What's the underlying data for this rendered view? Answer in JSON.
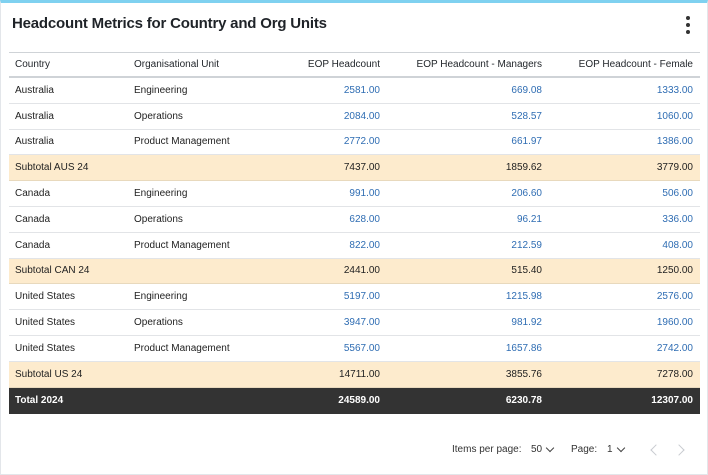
{
  "widget": {
    "title": "Headcount Metrics for Country and Org Units",
    "menu_icon": "kebab-menu-icon"
  },
  "table": {
    "columns": [
      "Country",
      "Organisational Unit",
      "EOP Headcount",
      "EOP Headcount - Managers",
      "EOP Headcount - Female"
    ],
    "rows": [
      {
        "type": "data",
        "cells": [
          "Australia",
          "Engineering",
          "2581.00",
          "669.08",
          "1333.00"
        ]
      },
      {
        "type": "data",
        "cells": [
          "Australia",
          "Operations",
          "2084.00",
          "528.57",
          "1060.00"
        ]
      },
      {
        "type": "data",
        "cells": [
          "Australia",
          "Product Management",
          "2772.00",
          "661.97",
          "1386.00"
        ]
      },
      {
        "type": "subtotal",
        "cells": [
          "Subtotal AUS 24",
          "",
          "7437.00",
          "1859.62",
          "3779.00"
        ]
      },
      {
        "type": "data",
        "cells": [
          "Canada",
          "Engineering",
          "991.00",
          "206.60",
          "506.00"
        ]
      },
      {
        "type": "data",
        "cells": [
          "Canada",
          "Operations",
          "628.00",
          "96.21",
          "336.00"
        ]
      },
      {
        "type": "data",
        "cells": [
          "Canada",
          "Product Management",
          "822.00",
          "212.59",
          "408.00"
        ]
      },
      {
        "type": "subtotal",
        "cells": [
          "Subtotal CAN 24",
          "",
          "2441.00",
          "515.40",
          "1250.00"
        ]
      },
      {
        "type": "data",
        "cells": [
          "United States",
          "Engineering",
          "5197.00",
          "1215.98",
          "2576.00"
        ]
      },
      {
        "type": "data",
        "cells": [
          "United States",
          "Operations",
          "3947.00",
          "981.92",
          "1960.00"
        ]
      },
      {
        "type": "data",
        "cells": [
          "United States",
          "Product Management",
          "5567.00",
          "1657.86",
          "2742.00"
        ]
      },
      {
        "type": "subtotal",
        "cells": [
          "Subtotal US 24",
          "",
          "14711.00",
          "3855.76",
          "7278.00"
        ]
      },
      {
        "type": "total",
        "cells": [
          "Total 2024",
          "",
          "24589.00",
          "6230.78",
          "12307.00"
        ]
      }
    ]
  },
  "pagination": {
    "items_per_page_label": "Items per page:",
    "items_per_page_value": "50",
    "page_label": "Page:",
    "page_value": "1"
  },
  "colors": {
    "accent_border": "#7fd1f0",
    "link_blue": "#2f6db3",
    "subtotal_bg": "#fdebcd",
    "total_bg": "#333333"
  }
}
